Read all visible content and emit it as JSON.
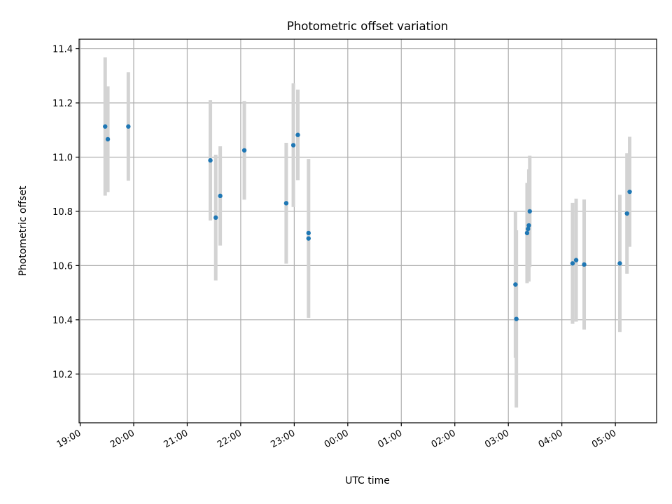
{
  "chart_data": {
    "type": "scatter",
    "title": "Photometric offset variation",
    "xlabel": "UTC time",
    "ylabel": "Photometric offset",
    "x_unit": "hours after 19:00 UTC",
    "xlim": [
      -0.02,
      10.77
    ],
    "ylim": [
      10.02,
      11.435
    ],
    "x_ticks": [
      {
        "x": 0,
        "label": "19:00"
      },
      {
        "x": 1,
        "label": "20:00"
      },
      {
        "x": 2,
        "label": "21:00"
      },
      {
        "x": 3,
        "label": "22:00"
      },
      {
        "x": 4,
        "label": "23:00"
      },
      {
        "x": 5,
        "label": "00:00"
      },
      {
        "x": 6,
        "label": "01:00"
      },
      {
        "x": 7,
        "label": "02:00"
      },
      {
        "x": 8,
        "label": "03:00"
      },
      {
        "x": 9,
        "label": "04:00"
      },
      {
        "x": 10,
        "label": "05:00"
      }
    ],
    "y_ticks": [
      {
        "y": 10.2,
        "label": "10.2"
      },
      {
        "y": 10.4,
        "label": "10.4"
      },
      {
        "y": 10.6,
        "label": "10.6"
      },
      {
        "y": 10.8,
        "label": "10.8"
      },
      {
        "y": 11.0,
        "label": "11.0"
      },
      {
        "y": 11.2,
        "label": "11.2"
      },
      {
        "y": 11.4,
        "label": "11.4"
      }
    ],
    "grid": true,
    "series": [
      {
        "points": [
          {
            "x": 0.467,
            "y": 11.113,
            "err": 0.255
          },
          {
            "x": 0.517,
            "y": 11.066,
            "err": 0.195
          },
          {
            "x": 0.9,
            "y": 11.113,
            "err": 0.2
          },
          {
            "x": 2.433,
            "y": 10.988,
            "err": 0.222
          },
          {
            "x": 2.533,
            "y": 10.777,
            "err": 0.232
          },
          {
            "x": 2.617,
            "y": 10.857,
            "err": 0.183
          },
          {
            "x": 3.067,
            "y": 11.025,
            "err": 0.182
          },
          {
            "x": 3.85,
            "y": 10.83,
            "err": 0.223
          },
          {
            "x": 3.983,
            "y": 11.044,
            "err": 0.228
          },
          {
            "x": 4.067,
            "y": 11.082,
            "err": 0.167
          },
          {
            "x": 4.267,
            "y": 10.72,
            "err": 0.0
          },
          {
            "x": 4.267,
            "y": 10.7,
            "err": 0.293
          },
          {
            "x": 8.133,
            "y": 10.53,
            "err": 0.27
          },
          {
            "x": 8.15,
            "y": 10.403,
            "err": 0.327
          },
          {
            "x": 8.35,
            "y": 10.72,
            "err": 0.185
          },
          {
            "x": 8.367,
            "y": 10.735,
            "err": 0.17
          },
          {
            "x": 8.383,
            "y": 10.748,
            "err": 0.207
          },
          {
            "x": 8.4,
            "y": 10.8,
            "err": 0.205
          },
          {
            "x": 9.2,
            "y": 10.608,
            "err": 0.223
          },
          {
            "x": 9.267,
            "y": 10.62,
            "err": 0.227
          },
          {
            "x": 9.417,
            "y": 10.604,
            "err": 0.24
          },
          {
            "x": 10.083,
            "y": 10.608,
            "err": 0.253
          },
          {
            "x": 10.217,
            "y": 10.792,
            "err": 0.222
          },
          {
            "x": 10.267,
            "y": 10.872,
            "err": 0.203
          }
        ]
      }
    ],
    "colors": {
      "marker": "#1f77b4",
      "errorbar": "#d3d3d3",
      "grid": "#b0b0b0",
      "axes": "#000000"
    }
  }
}
